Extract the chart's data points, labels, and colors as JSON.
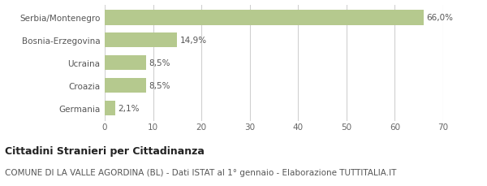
{
  "categories": [
    "Germania",
    "Croazia",
    "Ucraina",
    "Bosnia-Erzegovina",
    "Serbia/Montenegro"
  ],
  "values": [
    2.1,
    8.5,
    8.5,
    14.9,
    66.0
  ],
  "labels": [
    "2,1%",
    "8,5%",
    "8,5%",
    "14,9%",
    "66,0%"
  ],
  "bar_color": "#b5c98e",
  "background_color": "#ffffff",
  "xlim": [
    0,
    70
  ],
  "xticks": [
    0,
    10,
    20,
    30,
    40,
    50,
    60,
    70
  ],
  "grid_color": "#d0d0d0",
  "title_bold": "Cittadini Stranieri per Cittadinanza",
  "subtitle": "COMUNE DI LA VALLE AGORDINA (BL) - Dati ISTAT al 1° gennaio - Elaborazione TUTTITALIA.IT",
  "title_fontsize": 9,
  "subtitle_fontsize": 7.5,
  "bar_label_fontsize": 7.5,
  "ytick_fontsize": 7.5,
  "xtick_fontsize": 7.5,
  "bar_height": 0.65
}
